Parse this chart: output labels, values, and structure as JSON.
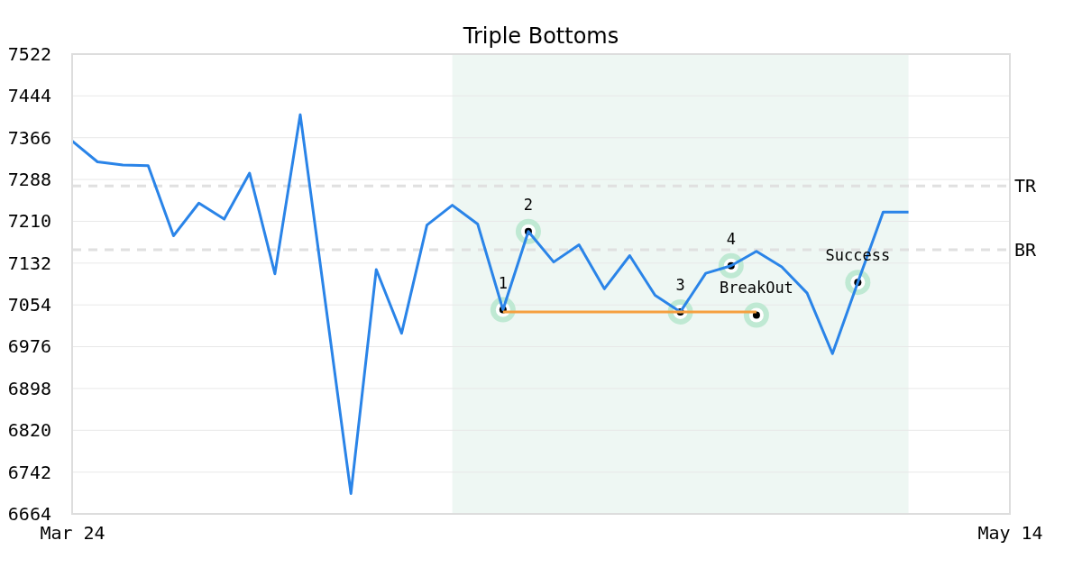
{
  "chart_data": {
    "type": "line",
    "title": "Triple Bottoms",
    "categories": [
      "Mar 24",
      null,
      null,
      null,
      null,
      null,
      null,
      null,
      null,
      null,
      null,
      null,
      null,
      null,
      null,
      null,
      null,
      null,
      null,
      null,
      null,
      null,
      null,
      null,
      null,
      null,
      null,
      null,
      null,
      null,
      null,
      null,
      null,
      null,
      null,
      null,
      null,
      "May 14"
    ],
    "ylim": [
      6664,
      7522
    ],
    "yticks": [
      6664,
      6742,
      6820,
      6898,
      6976,
      7054,
      7132,
      7210,
      7288,
      7366,
      7444,
      7522
    ],
    "grid": "y",
    "line_style": "solid",
    "series": [
      {
        "color": "#2a84e8",
        "values": [
          7360,
          7321,
          7315,
          7314,
          7183,
          7244,
          7214,
          7300,
          7112,
          7409,
          7056,
          6702,
          7120,
          7001,
          7203,
          7240,
          7205,
          7045,
          7191,
          7134,
          7166,
          7084,
          7146,
          7072,
          7041,
          7113,
          7127,
          7154,
          7125,
          7076,
          6963,
          7096,
          7227,
          7227,
          null,
          null,
          null,
          null
        ]
      },
      {
        "color": "#f5a040",
        "values": [
          null,
          null,
          null,
          null,
          null,
          null,
          null,
          null,
          null,
          null,
          null,
          null,
          null,
          null,
          null,
          null,
          null,
          7041,
          7041,
          7041,
          7041,
          7041,
          7041,
          7041,
          7041,
          7041,
          7041,
          7041,
          null,
          null,
          null,
          null,
          null,
          null,
          null,
          null,
          null,
          null
        ]
      },
      {
        "type": "scatter",
        "color": "#000000",
        "marker": "circle",
        "values": [
          null,
          null,
          null,
          null,
          null,
          null,
          null,
          null,
          null,
          null,
          null,
          null,
          null,
          null,
          null,
          null,
          null,
          7045,
          7191,
          null,
          null,
          null,
          null,
          null,
          7041,
          null,
          7127,
          7035,
          null,
          null,
          null,
          7096,
          null,
          null,
          null,
          null,
          null,
          null
        ]
      }
    ],
    "ref_lines": [
      {
        "axis": "y",
        "value": 7276,
        "label": "TR",
        "color": "#e0e0e0",
        "line_style": "dashed"
      },
      {
        "axis": "y",
        "value": 7157,
        "label": "BR",
        "color": "#e0e0e0",
        "line_style": "dashed"
      }
    ],
    "annotations": [
      "1",
      "2",
      "3",
      "4",
      "BreakOut",
      "Success"
    ]
  }
}
